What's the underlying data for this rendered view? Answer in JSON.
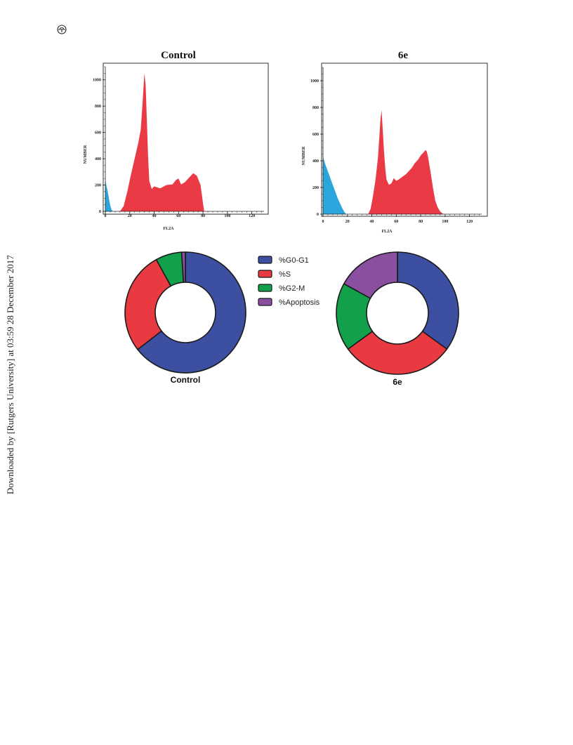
{
  "side_note": "Downloaded by [Rutgers University] at 03:59 28 December 2017",
  "logo_icon": "publisher-logo-icon",
  "colors": {
    "subdiploid": "#2ba6dd",
    "histogram": "#ea3a45",
    "g0g1": "#3d4fa0",
    "s": "#ea3a41",
    "g2m": "#12a04a",
    "apoptosis": "#8b4f9f",
    "outline": "#1a1a1a"
  },
  "chart_data": [
    {
      "type": "area",
      "title": "Control",
      "xlabel": "FL2A",
      "ylabel": "NUMBER",
      "xlim": [
        0,
        130
      ],
      "ylim": [
        0,
        1100
      ],
      "x_ticks": [
        0,
        20,
        40,
        60,
        80,
        100,
        120
      ],
      "y_ticks": [
        0,
        200,
        400,
        600,
        800,
        1000
      ],
      "series": [
        {
          "color_key": "subdiploid",
          "x": [
            0,
            1,
            2,
            3,
            4,
            5,
            6
          ],
          "y": [
            240,
            190,
            150,
            95,
            45,
            15,
            0
          ]
        },
        {
          "color_key": "histogram",
          "x": [
            12,
            15,
            18,
            21,
            24,
            27,
            29,
            30,
            31,
            32,
            33,
            34,
            35,
            36,
            38,
            40,
            45,
            50,
            55,
            58,
            60,
            62,
            65,
            70,
            72,
            75,
            78,
            80,
            81
          ],
          "y": [
            0,
            40,
            150,
            280,
            400,
            520,
            620,
            760,
            900,
            1050,
            960,
            700,
            430,
            230,
            170,
            190,
            175,
            200,
            205,
            240,
            250,
            205,
            220,
            270,
            290,
            270,
            200,
            60,
            0
          ]
        }
      ]
    },
    {
      "type": "area",
      "title": "6e",
      "xlabel": "FL2A",
      "ylabel": "NUMBER",
      "xlim": [
        0,
        130
      ],
      "ylim": [
        0,
        1100
      ],
      "x_ticks": [
        0,
        20,
        40,
        60,
        80,
        100,
        120
      ],
      "y_ticks": [
        0,
        200,
        400,
        600,
        800,
        1000
      ],
      "series": [
        {
          "color_key": "subdiploid",
          "x": [
            0,
            2,
            4,
            6,
            8,
            10,
            12,
            14,
            16,
            18,
            19
          ],
          "y": [
            430,
            370,
            320,
            270,
            220,
            170,
            120,
            80,
            40,
            10,
            0
          ]
        },
        {
          "color_key": "histogram",
          "x": [
            37,
            39,
            41,
            43,
            45,
            46,
            47,
            48,
            49,
            50,
            51,
            52,
            54,
            56,
            58,
            60,
            62,
            65,
            68,
            70,
            73,
            75,
            78,
            80,
            82,
            84,
            85,
            86,
            88,
            90,
            92,
            94,
            96,
            98,
            99
          ],
          "y": [
            0,
            40,
            140,
            260,
            420,
            560,
            700,
            780,
            620,
            470,
            340,
            260,
            220,
            230,
            270,
            250,
            260,
            280,
            300,
            320,
            350,
            380,
            410,
            440,
            460,
            480,
            470,
            430,
            320,
            200,
            100,
            50,
            20,
            5,
            0
          ]
        }
      ]
    },
    {
      "type": "pie",
      "donut": true,
      "label": "Control",
      "labels": [
        "%G0-G1",
        "%S",
        "%G2-M",
        "%Apoptosis"
      ],
      "values": [
        64.5,
        27.5,
        7,
        1
      ],
      "color_keys": [
        "g0g1",
        "s",
        "g2m",
        "apoptosis"
      ]
    },
    {
      "type": "pie",
      "donut": true,
      "label": "6e",
      "labels": [
        "%G0-G1",
        "%S",
        "%G2-M",
        "%Apoptosis"
      ],
      "values": [
        35,
        30,
        18,
        17
      ],
      "color_keys": [
        "g0g1",
        "s",
        "g2m",
        "apoptosis"
      ]
    }
  ],
  "legend": {
    "items": [
      {
        "label": "%G0-G1",
        "color_key": "g0g1"
      },
      {
        "label": "%S",
        "color_key": "s"
      },
      {
        "label": "%G2-M",
        "color_key": "g2m"
      },
      {
        "label": "%Apoptosis",
        "color_key": "apoptosis"
      }
    ]
  }
}
